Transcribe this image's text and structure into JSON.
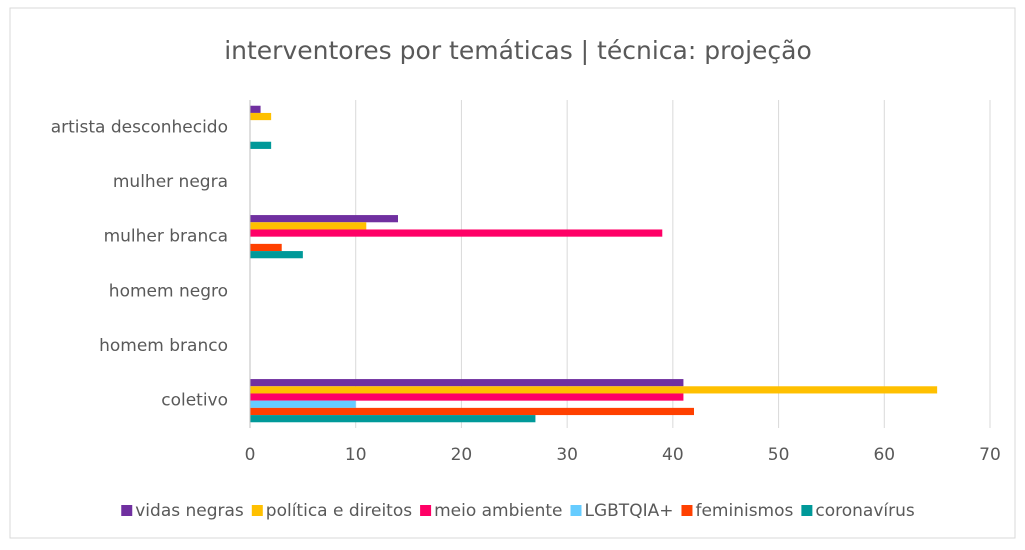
{
  "chart_data": {
    "type": "hbar",
    "title": "interventores por temáticas | técnica: projeção",
    "categories": [
      "artista desconhecido",
      "mulher negra",
      "mulher branca",
      "homem negro",
      "homem branco",
      "coletivo"
    ],
    "series": [
      {
        "name": "vidas negras",
        "color": "#7030a0",
        "values": [
          1,
          0,
          14,
          0,
          0,
          41
        ]
      },
      {
        "name": "política e direitos",
        "color": "#ffc000",
        "values": [
          2,
          0,
          11,
          0,
          0,
          65
        ]
      },
      {
        "name": "meio ambiente",
        "color": "#ff0066",
        "values": [
          0,
          0,
          39,
          0,
          0,
          41
        ]
      },
      {
        "name": "LGBTQIA+",
        "color": "#66ccff",
        "values": [
          0,
          0,
          0,
          0,
          0,
          10
        ]
      },
      {
        "name": "feminismos",
        "color": "#ff4000",
        "values": [
          0,
          0,
          3,
          0,
          0,
          42
        ]
      },
      {
        "name": "coronavírus",
        "color": "#009999",
        "values": [
          2,
          0,
          5,
          0,
          0,
          27
        ]
      }
    ],
    "xlim": [
      0,
      70
    ],
    "xticks": [
      0,
      10,
      20,
      30,
      40,
      50,
      60,
      70
    ],
    "grid": true,
    "legend": "bottom"
  }
}
